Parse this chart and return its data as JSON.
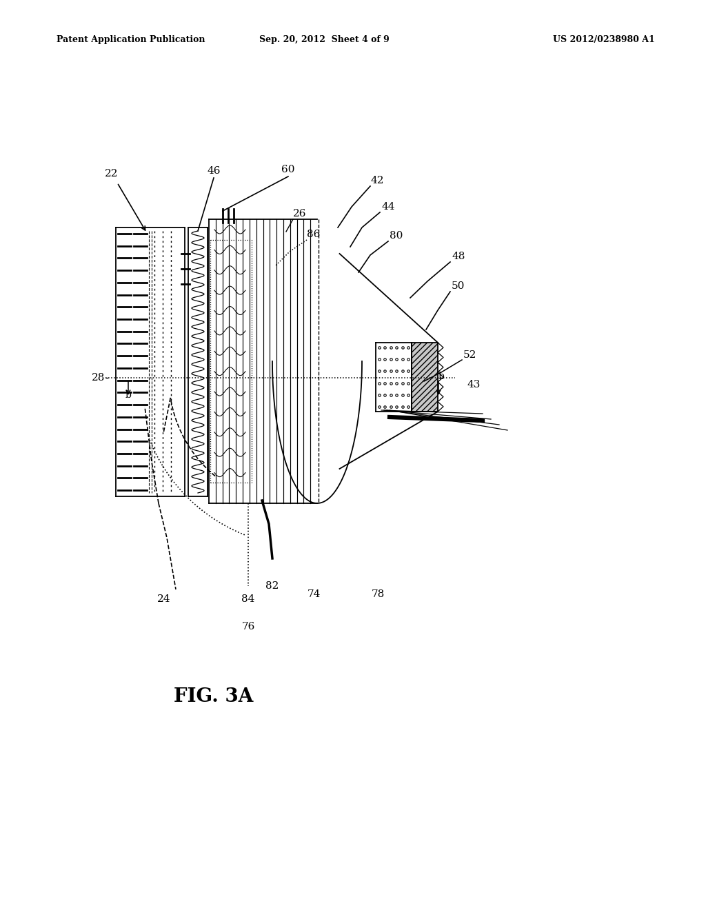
{
  "title": "FIG. 3A",
  "header_left": "Patent Application Publication",
  "header_center": "Sep. 20, 2012  Sheet 4 of 9",
  "header_right": "US 2012/0238980 A1",
  "bg_color": "#ffffff"
}
